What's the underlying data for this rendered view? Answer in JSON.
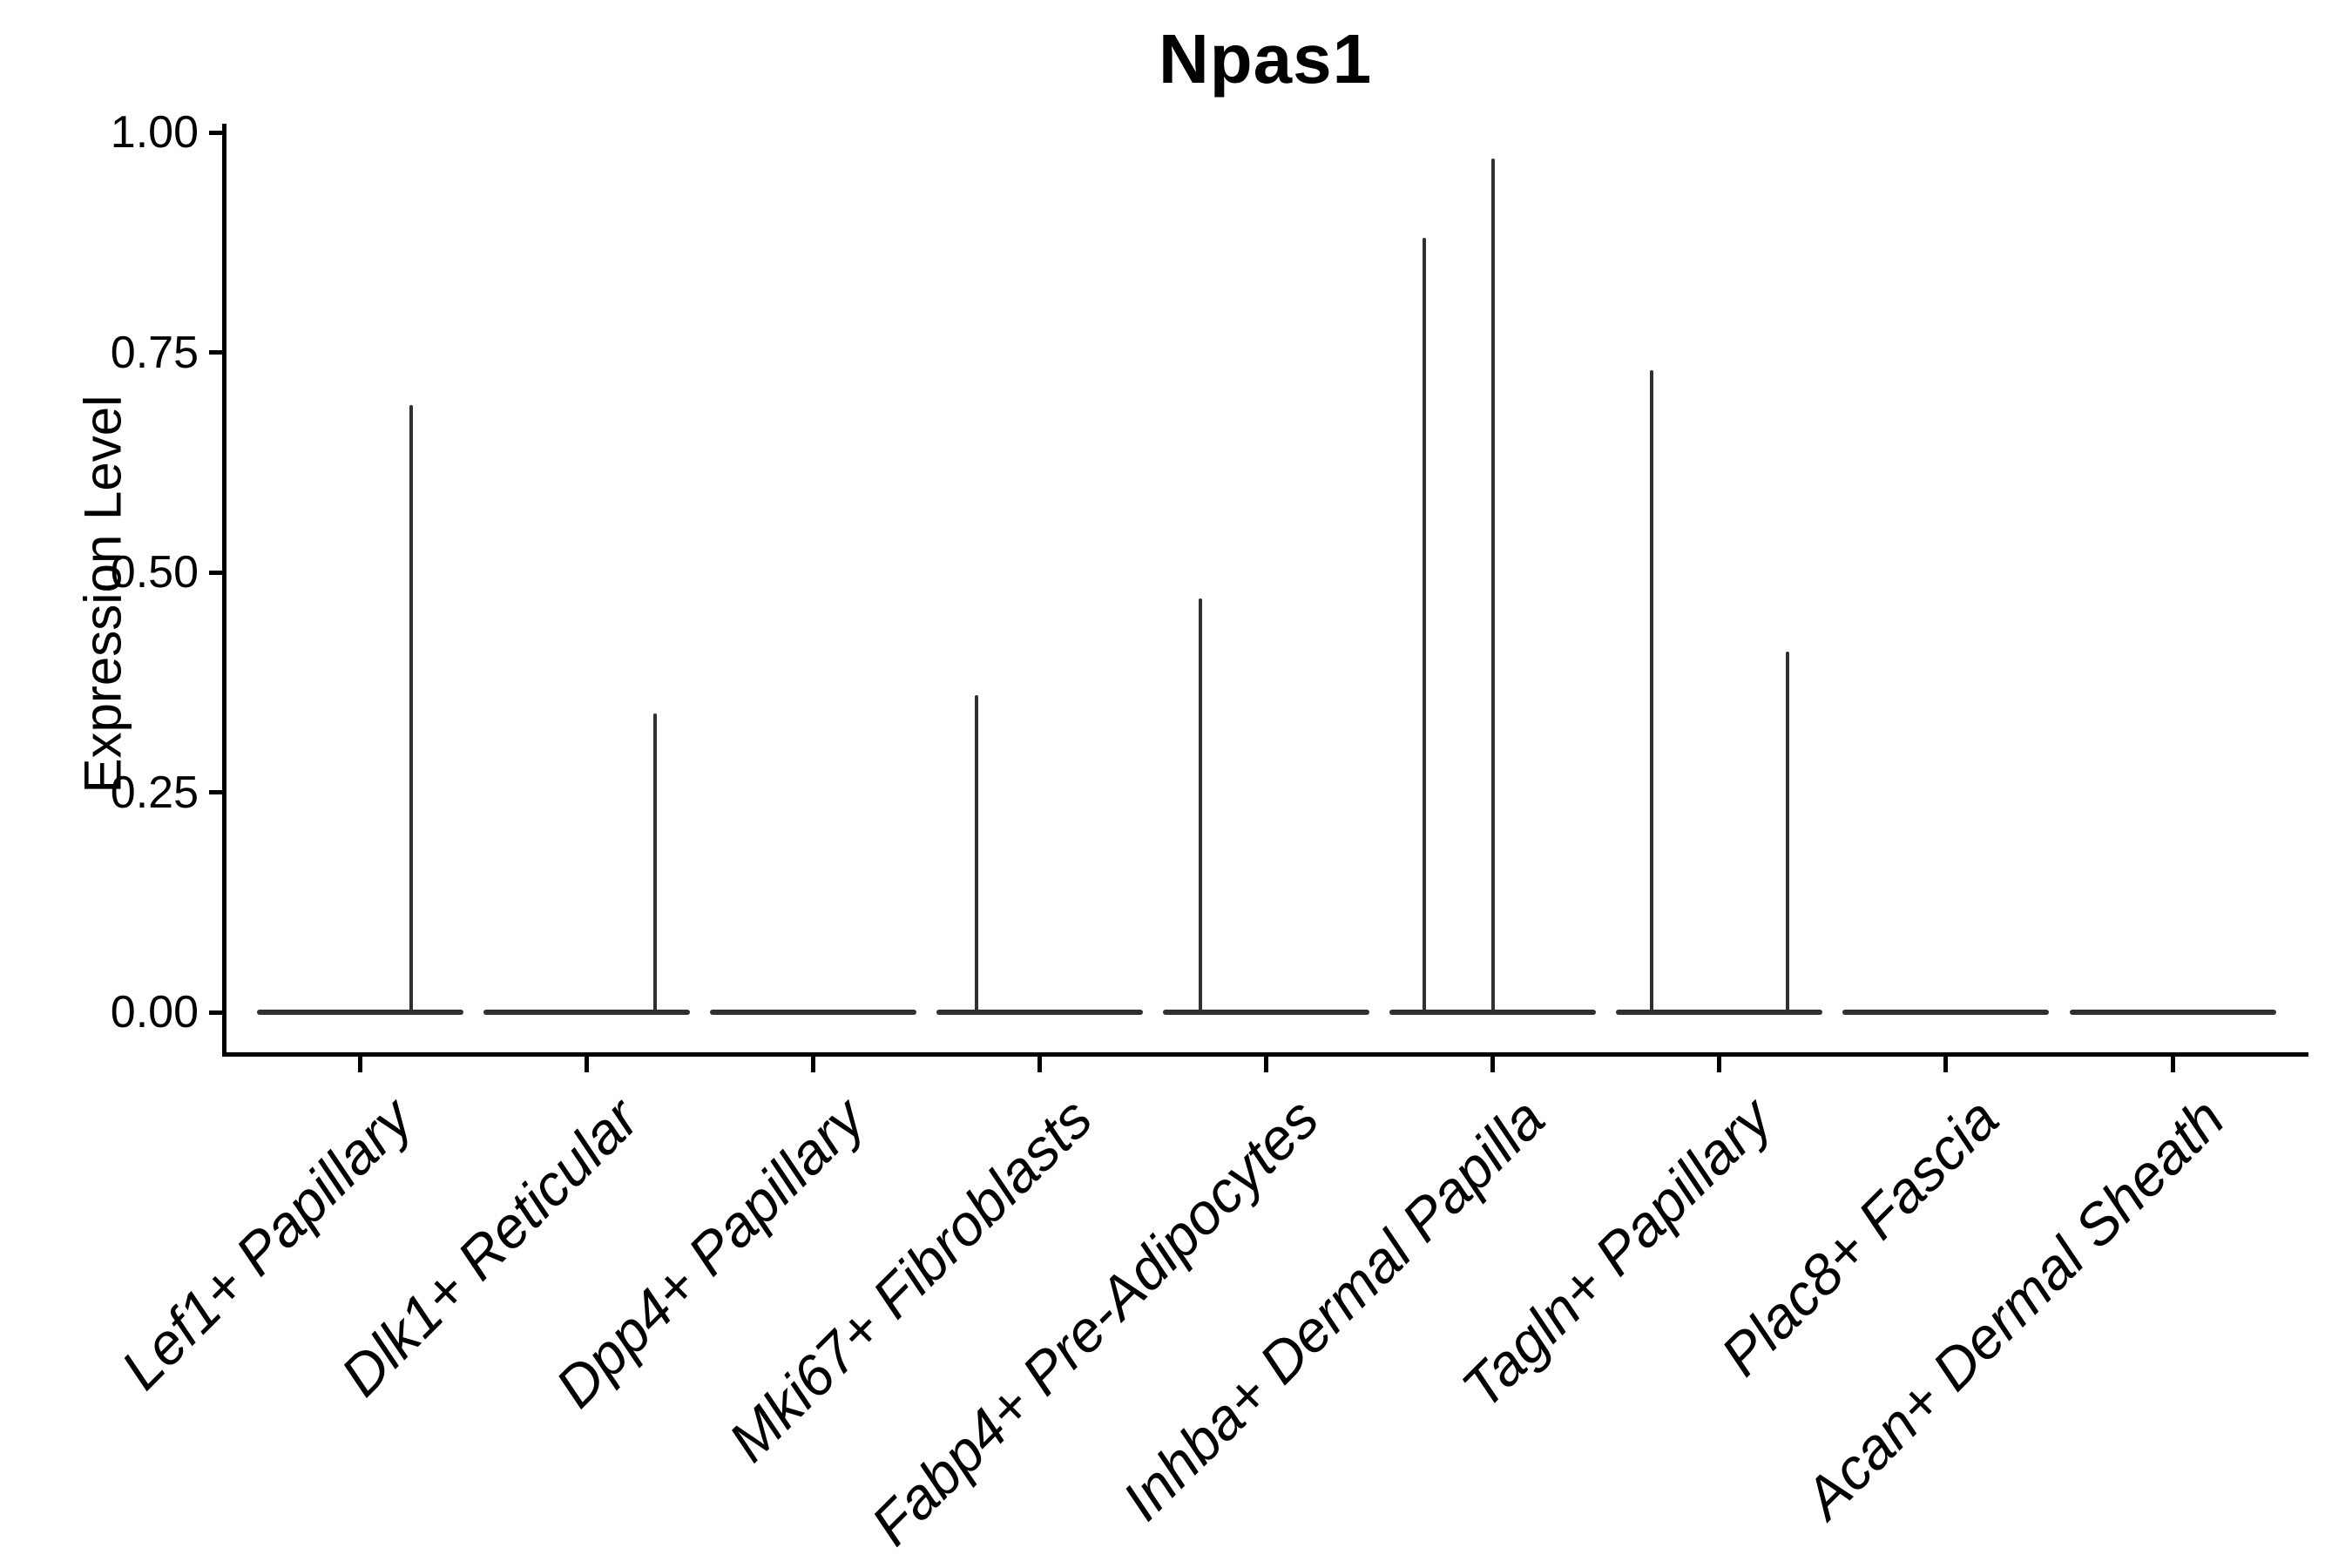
{
  "chart_data": {
    "type": "violin",
    "title": "Npas1",
    "ylabel": "Expression Level",
    "xlabel": "",
    "ylim": [
      0.0,
      1.0
    ],
    "yticks": [
      0.0,
      0.25,
      0.5,
      0.75,
      1.0
    ],
    "ytick_labels": [
      "0.00",
      "0.25",
      "0.50",
      "0.75",
      "1.00"
    ],
    "grid": false,
    "legend": "none",
    "categories": [
      "Lef1+ Papillary",
      "Dlk1+ Reticular",
      "Dpp4+ Papillary",
      "Mki67+ Fibroblasts",
      "Fabp4+ Pre-Adipocytes",
      "Inhba+ Dermal Papilla",
      "Tagln+ Papillary",
      "Plac8+ Fascia",
      "Acan+ Dermal Sheath"
    ],
    "violins": [
      {
        "category": "Lef1+ Papillary",
        "baseline": 0.0,
        "spikes": [
          {
            "value": 0.69,
            "dx": 59
          }
        ]
      },
      {
        "category": "Dlk1+ Reticular",
        "baseline": 0.0,
        "spikes": [
          {
            "value": 0.34,
            "dx": 79
          }
        ]
      },
      {
        "category": "Dpp4+ Papillary",
        "baseline": 0.0,
        "spikes": []
      },
      {
        "category": "Mki67+ Fibroblasts",
        "baseline": 0.0,
        "spikes": [
          {
            "value": 0.36,
            "dx": -72
          }
        ]
      },
      {
        "category": "Fabp4+ Pre-Adipocytes",
        "baseline": 0.0,
        "spikes": [
          {
            "value": 0.47,
            "dx": -76
          }
        ]
      },
      {
        "category": "Inhba+ Dermal Papilla",
        "baseline": 0.0,
        "spikes": [
          {
            "value": 0.88,
            "dx": -79
          },
          {
            "value": 0.97,
            "dx": 0
          }
        ]
      },
      {
        "category": "Tagln+ Papillary",
        "baseline": 0.0,
        "spikes": [
          {
            "value": 0.73,
            "dx": -78
          },
          {
            "value": 0.41,
            "dx": 78
          }
        ]
      },
      {
        "category": "Plac8+ Fascia",
        "baseline": 0.0,
        "spikes": []
      },
      {
        "category": "Acan+ Dermal Sheath",
        "baseline": 0.0,
        "spikes": []
      }
    ],
    "colors": {
      "violin": "#303030",
      "axis": "#000000",
      "text": "#000000",
      "background": "#ffffff"
    }
  }
}
